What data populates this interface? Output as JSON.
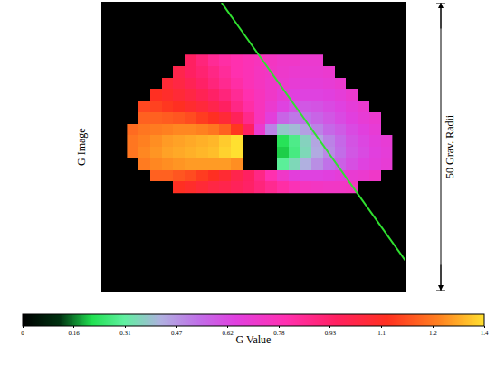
{
  "chart_data": {
    "type": "heatmap",
    "ylabel": "G Image",
    "xlim": [
      -26.3,
      26.3
    ],
    "ylim": [
      -25,
      25
    ],
    "tick_labels": false,
    "x": [
      -21,
      -19,
      -17,
      -15,
      -13,
      -11,
      -9,
      -7,
      -5,
      -3,
      -1,
      1,
      3,
      5,
      7,
      9,
      11,
      13,
      15,
      17,
      19,
      21,
      23
    ],
    "y": [
      -7,
      -5,
      -3,
      -1,
      1,
      3,
      5,
      7,
      9,
      11,
      13,
      15
    ],
    "z": [
      [
        null,
        null,
        null,
        null,
        1.1,
        1.08,
        1.05,
        1.02,
        1.0,
        0.97,
        0.94,
        0.9,
        0.86,
        0.82,
        0.78,
        0.75,
        0.74,
        0.73,
        0.73,
        0.74,
        null,
        null,
        null
      ],
      [
        null,
        null,
        1.2,
        1.2,
        1.18,
        1.16,
        1.13,
        1.1,
        1.06,
        1.0,
        0.95,
        0.88,
        0.8,
        0.72,
        0.66,
        0.64,
        0.64,
        0.65,
        0.67,
        0.69,
        0.7,
        0.72,
        null
      ],
      [
        null,
        1.25,
        1.27,
        1.28,
        1.29,
        1.3,
        1.3,
        1.3,
        1.3,
        1.28,
        null,
        null,
        null,
        0.3,
        0.35,
        0.42,
        0.48,
        0.53,
        0.57,
        0.61,
        0.64,
        0.66,
        0.68
      ],
      [
        1.24,
        1.27,
        1.29,
        1.31,
        1.32,
        1.33,
        1.34,
        1.35,
        1.38,
        1.4,
        null,
        null,
        null,
        0.2,
        0.27,
        0.35,
        0.43,
        0.49,
        0.54,
        0.59,
        0.62,
        0.65,
        0.67
      ],
      [
        1.24,
        1.26,
        1.28,
        1.3,
        1.31,
        1.32,
        1.33,
        1.34,
        1.37,
        1.4,
        null,
        null,
        null,
        0.22,
        0.28,
        0.36,
        0.44,
        0.5,
        0.55,
        0.6,
        0.63,
        0.66,
        0.68
      ],
      [
        1.22,
        1.24,
        1.25,
        1.26,
        1.27,
        1.27,
        1.26,
        1.24,
        1.2,
        1.12,
        0.95,
        0.7,
        0.5,
        0.38,
        0.4,
        0.45,
        0.5,
        0.55,
        0.58,
        0.62,
        0.65,
        0.68,
        null
      ],
      [
        null,
        1.2,
        1.2,
        1.19,
        1.18,
        1.16,
        1.13,
        1.1,
        1.05,
        0.97,
        0.87,
        0.76,
        0.66,
        0.56,
        0.52,
        0.53,
        0.56,
        0.59,
        0.62,
        0.65,
        0.68,
        0.7,
        null
      ],
      [
        null,
        1.15,
        1.14,
        1.12,
        1.1,
        1.07,
        1.04,
        1.0,
        0.95,
        0.88,
        0.82,
        0.76,
        0.7,
        0.64,
        0.6,
        0.59,
        0.6,
        0.62,
        0.64,
        0.67,
        0.7,
        null,
        null
      ],
      [
        null,
        null,
        1.1,
        1.08,
        1.05,
        1.02,
        0.98,
        0.94,
        0.9,
        0.85,
        0.8,
        0.76,
        0.72,
        0.68,
        0.65,
        0.64,
        0.64,
        0.65,
        0.67,
        0.7,
        null,
        null,
        null
      ],
      [
        null,
        null,
        null,
        1.05,
        1.02,
        0.98,
        0.94,
        0.9,
        0.86,
        0.82,
        0.78,
        0.75,
        0.72,
        0.7,
        0.68,
        0.67,
        0.67,
        0.68,
        0.7,
        null,
        null,
        null,
        null
      ],
      [
        null,
        null,
        null,
        null,
        1.0,
        0.95,
        0.92,
        0.88,
        0.84,
        0.8,
        0.78,
        0.75,
        0.73,
        0.71,
        0.7,
        0.69,
        0.69,
        0.7,
        null,
        null,
        null,
        null,
        null
      ],
      [
        null,
        null,
        null,
        null,
        null,
        0.95,
        0.9,
        0.85,
        0.82,
        0.8,
        0.78,
        0.76,
        0.74,
        0.72,
        0.72,
        0.7,
        0.7,
        null,
        null,
        null,
        null,
        null,
        null
      ]
    ],
    "colorbar": {
      "title": "G Value",
      "range": [
        0,
        1.4
      ],
      "ticks": [
        0,
        {
          "value": 0.1556,
          "label": "0.16"
        },
        {
          "value": 0.3111,
          "label": "0.31"
        },
        {
          "value": 0.4667,
          "label": "0.47"
        },
        {
          "value": 0.6222,
          "label": "0.62"
        },
        {
          "value": 0.7778,
          "label": "0.78"
        },
        {
          "value": 0.9333,
          "label": "0.93"
        },
        {
          "value": 1.0889,
          "label": "1.1"
        },
        {
          "value": 1.2444,
          "label": "1.2"
        },
        1.4
      ]
    },
    "annotations": [
      {
        "text": "50 Grav. Radii",
        "span": [
          -25,
          25
        ]
      }
    ],
    "series": [
      {
        "type": "line",
        "color": "#30e030",
        "x": [
          -5.6,
          26.3
        ],
        "y": [
          25,
          -19.8
        ]
      }
    ]
  }
}
